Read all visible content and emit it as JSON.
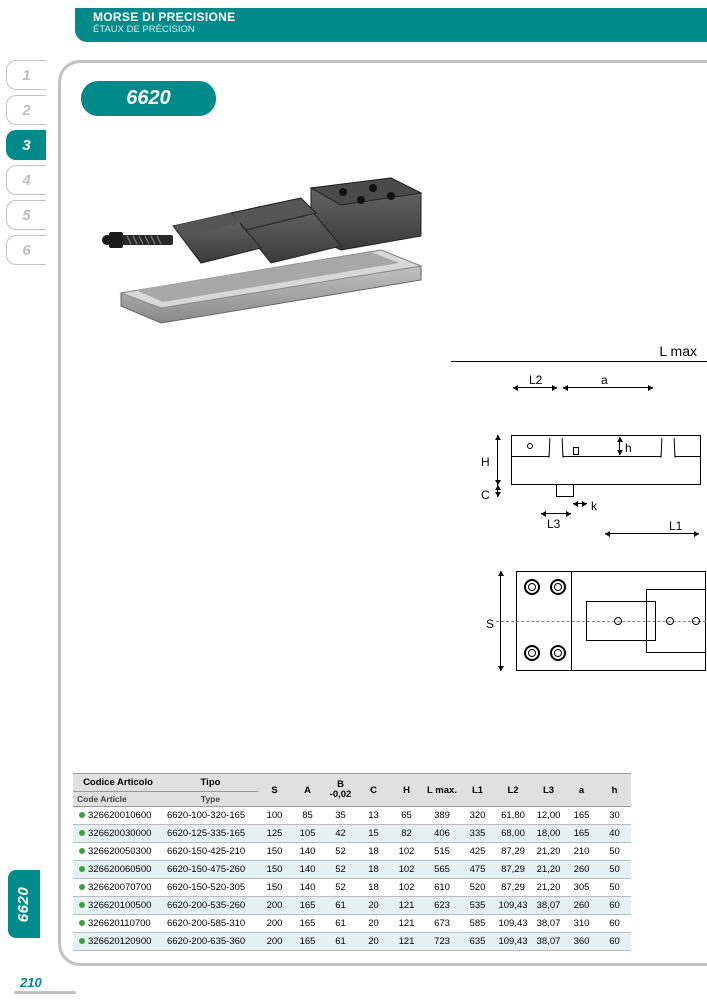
{
  "header": {
    "title_it": "MORSE DI PRECISIONE",
    "title_fr": "ÉTAUX DE PRÉCISION"
  },
  "side_tabs": [
    "1",
    "2",
    "3",
    "4",
    "5",
    "6"
  ],
  "side_tabs_active_index": 2,
  "product_badge": "6620",
  "side_label": "6620",
  "page_number": "210",
  "diagram_labels": {
    "lmax": "L max",
    "L2": "L2",
    "a": "a",
    "h": "h",
    "H": "H",
    "C": "C",
    "L3": "L3",
    "k": "k",
    "L1": "L1",
    "S": "S"
  },
  "table": {
    "header_it": {
      "codice": "Codice Articolo",
      "tipo": "Tipo"
    },
    "header_en": {
      "codice": "Code Article",
      "tipo": "Type"
    },
    "cols": [
      "S",
      "A",
      "B\n-0,02",
      "C",
      "H",
      "L max.",
      "L1",
      "L2",
      "L3",
      "a",
      "h"
    ],
    "rows": [
      {
        "code": "326620010600",
        "type": "6620-100-320-165",
        "v": [
          "100",
          "85",
          "35",
          "13",
          "65",
          "389",
          "320",
          "61,80",
          "12,00",
          "165",
          "30"
        ],
        "alt": false
      },
      {
        "code": "326620030000",
        "type": "6620-125-335-165",
        "v": [
          "125",
          "105",
          "42",
          "15",
          "82",
          "406",
          "335",
          "68,00",
          "18,00",
          "165",
          "40"
        ],
        "alt": true
      },
      {
        "code": "326620050300",
        "type": "6620-150-425-210",
        "v": [
          "150",
          "140",
          "52",
          "18",
          "102",
          "515",
          "425",
          "87,29",
          "21,20",
          "210",
          "50"
        ],
        "alt": false
      },
      {
        "code": "326620060500",
        "type": "6620-150-475-260",
        "v": [
          "150",
          "140",
          "52",
          "18",
          "102",
          "565",
          "475",
          "87,29",
          "21,20",
          "260",
          "50"
        ],
        "alt": true
      },
      {
        "code": "326620070700",
        "type": "6620-150-520-305",
        "v": [
          "150",
          "140",
          "52",
          "18",
          "102",
          "610",
          "520",
          "87,29",
          "21,20",
          "305",
          "50"
        ],
        "alt": false
      },
      {
        "code": "326620100500",
        "type": "6620-200-535-260",
        "v": [
          "200",
          "165",
          "61",
          "20",
          "121",
          "623",
          "535",
          "109,43",
          "38,07",
          "260",
          "60"
        ],
        "alt": true
      },
      {
        "code": "326620110700",
        "type": "6620-200-585-310",
        "v": [
          "200",
          "165",
          "61",
          "20",
          "121",
          "673",
          "585",
          "109,43",
          "38,07",
          "310",
          "60"
        ],
        "alt": false
      },
      {
        "code": "326620120900",
        "type": "6620-200-635-360",
        "v": [
          "200",
          "165",
          "61",
          "20",
          "121",
          "723",
          "635",
          "109,43",
          "38,07",
          "360",
          "60"
        ],
        "alt": true
      }
    ]
  },
  "colors": {
    "brand": "#008a8a",
    "grey_border": "#c2c2c2",
    "row_alt": "#e6f2f2",
    "head_bg": "#e0e0e0",
    "green_dot": "#3aa03a"
  }
}
